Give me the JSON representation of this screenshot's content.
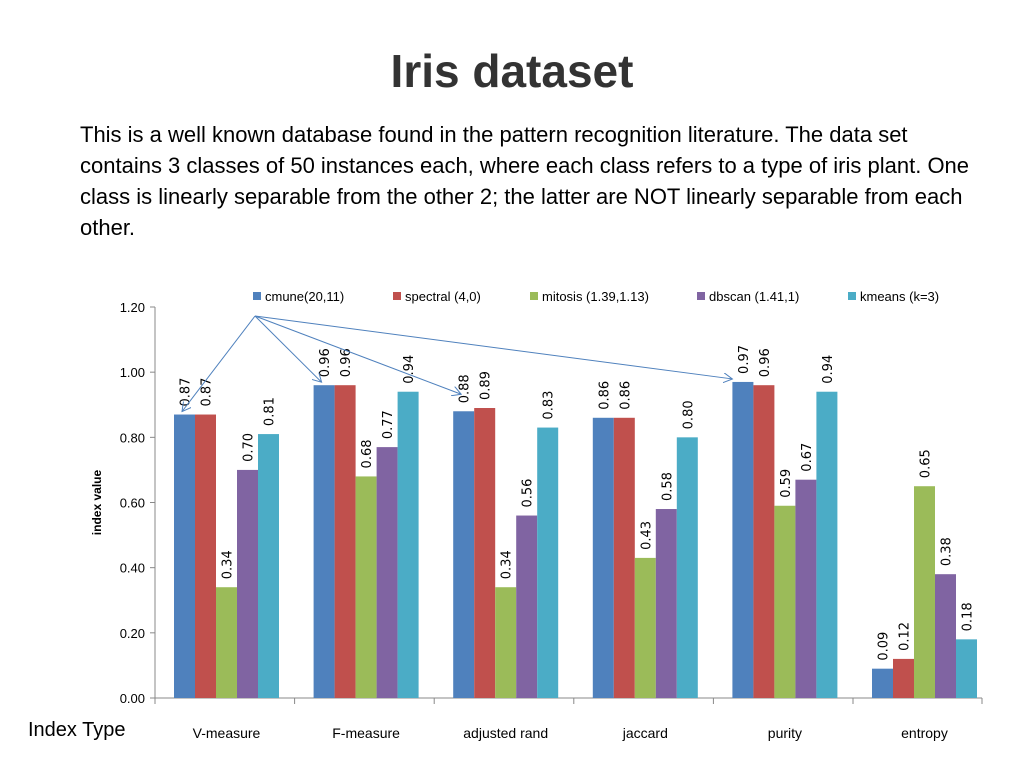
{
  "slide": {
    "title": "Iris dataset",
    "body": "This is a well known database found in the pattern recognition literature. The data set contains 3 classes of 50 instances each, where each class refers to a type of iris plant. One class is linearly separable from the other 2; the latter are NOT linearly separable from each other."
  },
  "x_axis_label": "Index Type",
  "chart_data": {
    "type": "bar",
    "title": "",
    "xlabel": "Index Type",
    "ylabel": "index value",
    "ylim": [
      0,
      1.2
    ],
    "yticks": [
      "0.00",
      "0.20",
      "0.40",
      "0.60",
      "0.80",
      "1.00",
      "1.20"
    ],
    "grid": false,
    "legend_position": "top",
    "categories": [
      "V-measure",
      "F-measure",
      "adjusted rand",
      "jaccard",
      "purity",
      "entropy"
    ],
    "series": [
      {
        "name": "cmune(20,11)",
        "color": "#4F81BD",
        "values": [
          0.87,
          0.96,
          0.88,
          0.86,
          0.97,
          0.09
        ],
        "labels": [
          "0.87",
          "0.96",
          "0.88",
          "0.86",
          "0.97",
          "0.09"
        ]
      },
      {
        "name": "spectral (4,0)",
        "color": "#C0504D",
        "values": [
          0.87,
          0.96,
          0.89,
          0.86,
          0.96,
          0.12
        ],
        "labels": [
          "0.87",
          "0.96",
          "0.89",
          "0.86",
          "0.96",
          "0.12"
        ]
      },
      {
        "name": "mitosis (1.39,1.13)",
        "color": "#9BBB59",
        "values": [
          0.34,
          0.68,
          0.34,
          0.43,
          0.59,
          0.65
        ],
        "labels": [
          "0.34",
          "0.68",
          "0.34",
          "0.43",
          "0.59",
          "0.65"
        ]
      },
      {
        "name": "dbscan (1.41,1)",
        "color": "#8064A2",
        "values": [
          0.7,
          0.77,
          0.56,
          0.58,
          0.67,
          0.38
        ],
        "labels": [
          "0.70",
          "0.77",
          "0.56",
          "0.58",
          "0.67",
          "0.38"
        ]
      },
      {
        "name": "kmeans (k=3)",
        "color": "#4BACC6",
        "values": [
          0.81,
          0.94,
          0.83,
          0.8,
          0.94,
          0.18
        ],
        "labels": [
          "0.81",
          "0.94",
          "0.83",
          "0.80",
          "0.94",
          "0.18"
        ]
      }
    ],
    "annotations": [
      "arrows from cmune(20,11) legend entry to the cmune bars of V-measure, F-measure, adjusted rand and purity"
    ]
  }
}
